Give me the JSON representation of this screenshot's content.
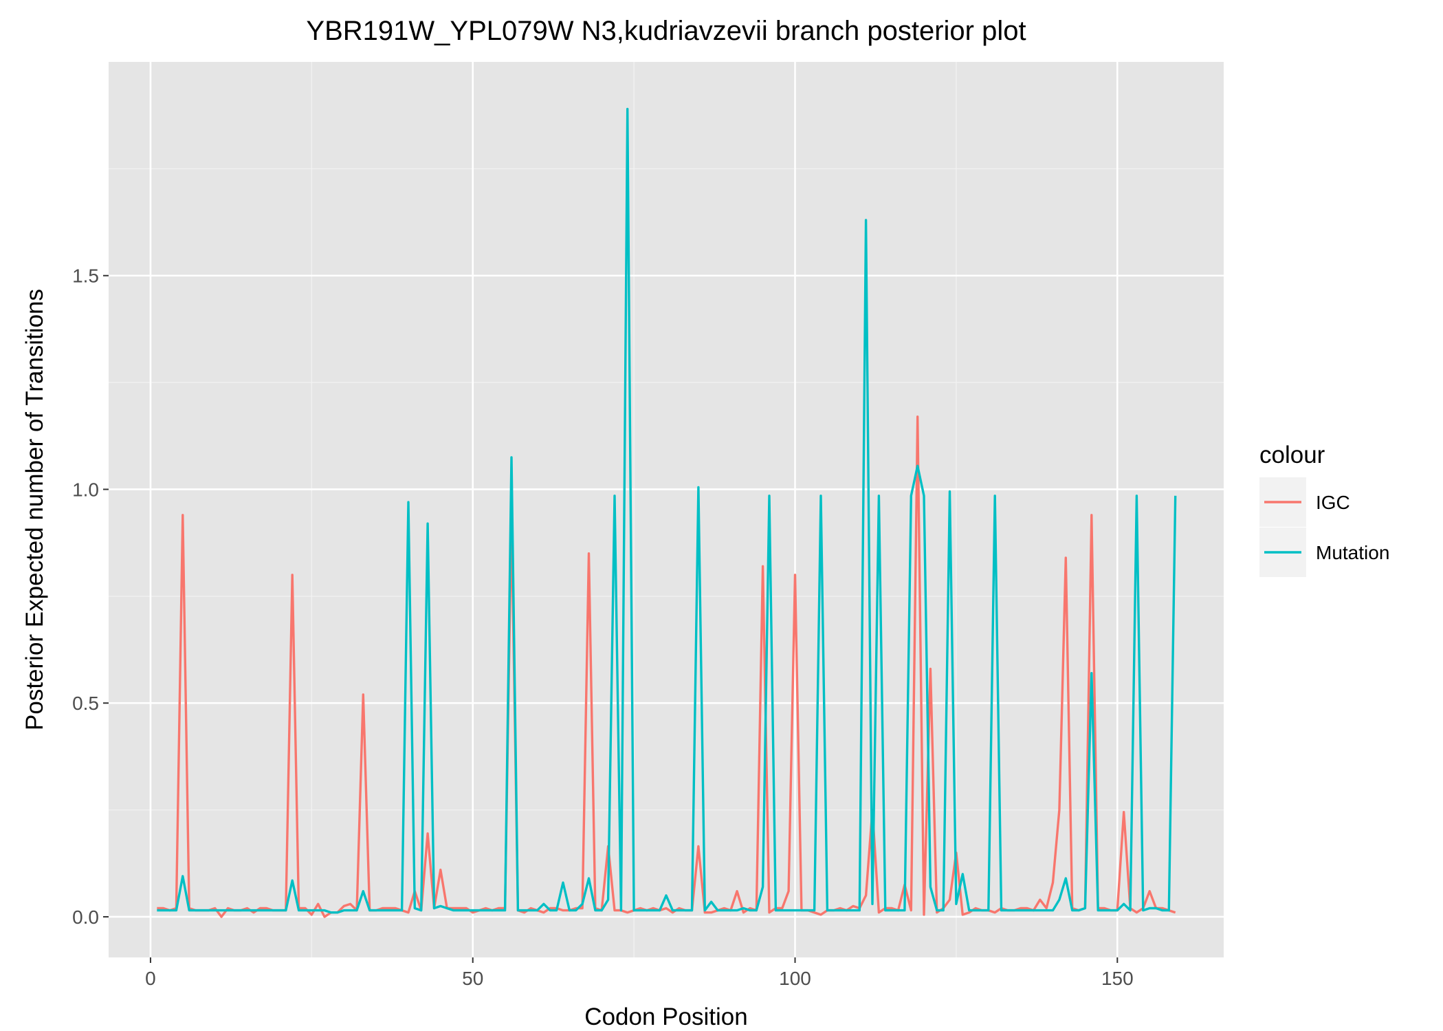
{
  "chart_data": {
    "type": "line",
    "title": "YBR191W_YPL079W N3,kudriavzevii branch posterior plot",
    "xlabel": "Codon Position",
    "ylabel": "Posterior Expected number of Transitions",
    "xlim": [
      -6.5,
      166.5
    ],
    "ylim": [
      -0.095,
      2.0
    ],
    "xticks": [
      0,
      50,
      100,
      150
    ],
    "xtick_labels": [
      "0",
      "50",
      "100",
      "150"
    ],
    "yticks": [
      0.0,
      0.5,
      1.0,
      1.5
    ],
    "ytick_labels": [
      "0.0",
      "0.5",
      "1.0",
      "1.5"
    ],
    "grid": true,
    "legend": {
      "title": "colour",
      "position": "right"
    },
    "series": [
      {
        "name": "IGC",
        "color": "#F8766D",
        "x": [
          1,
          2,
          3,
          4,
          5,
          6,
          7,
          8,
          9,
          10,
          11,
          12,
          13,
          14,
          15,
          16,
          17,
          18,
          19,
          20,
          21,
          22,
          23,
          24,
          25,
          26,
          27,
          28,
          29,
          30,
          31,
          32,
          33,
          34,
          35,
          36,
          37,
          38,
          39,
          40,
          41,
          42,
          43,
          44,
          45,
          46,
          47,
          48,
          49,
          50,
          51,
          52,
          53,
          54,
          55,
          56,
          57,
          58,
          59,
          60,
          61,
          62,
          63,
          64,
          65,
          66,
          67,
          68,
          69,
          70,
          71,
          72,
          73,
          74,
          75,
          76,
          77,
          78,
          79,
          80,
          81,
          82,
          83,
          84,
          85,
          86,
          87,
          88,
          89,
          90,
          91,
          92,
          93,
          94,
          95,
          96,
          97,
          98,
          99,
          100,
          101,
          102,
          103,
          104,
          105,
          106,
          107,
          108,
          109,
          110,
          111,
          112,
          113,
          114,
          115,
          116,
          117,
          118,
          119,
          120,
          121,
          122,
          123,
          124,
          125,
          126,
          127,
          128,
          129,
          130,
          131,
          132,
          133,
          134,
          135,
          136,
          137,
          138,
          139,
          140,
          141,
          142,
          143,
          144,
          145,
          146,
          147,
          148,
          149,
          150,
          151,
          152,
          153,
          154,
          155,
          156,
          157,
          158,
          159
        ],
        "y": [
          0.02,
          0.02,
          0.015,
          0.02,
          0.94,
          0.02,
          0.015,
          0.015,
          0.015,
          0.02,
          0.0,
          0.02,
          0.015,
          0.015,
          0.02,
          0.01,
          0.02,
          0.02,
          0.015,
          0.015,
          0.015,
          0.8,
          0.02,
          0.02,
          0.005,
          0.03,
          0.0,
          0.01,
          0.01,
          0.025,
          0.03,
          0.015,
          0.52,
          0.015,
          0.015,
          0.02,
          0.02,
          0.02,
          0.015,
          0.01,
          0.06,
          0.015,
          0.195,
          0.02,
          0.11,
          0.02,
          0.02,
          0.02,
          0.02,
          0.01,
          0.015,
          0.02,
          0.015,
          0.02,
          0.02,
          0.94,
          0.015,
          0.01,
          0.02,
          0.015,
          0.01,
          0.02,
          0.02,
          0.015,
          0.015,
          0.02,
          0.02,
          0.85,
          0.02,
          0.015,
          0.165,
          0.015,
          0.015,
          0.01,
          0.015,
          0.02,
          0.015,
          0.02,
          0.015,
          0.02,
          0.01,
          0.02,
          0.015,
          0.015,
          0.165,
          0.01,
          0.01,
          0.015,
          0.02,
          0.015,
          0.06,
          0.01,
          0.02,
          0.015,
          0.82,
          0.01,
          0.02,
          0.02,
          0.06,
          0.8,
          0.015,
          0.015,
          0.01,
          0.005,
          0.015,
          0.015,
          0.02,
          0.015,
          0.025,
          0.02,
          0.05,
          0.25,
          0.01,
          0.02,
          0.02,
          0.015,
          0.075,
          0.015,
          1.17,
          0.005,
          0.58,
          0.01,
          0.02,
          0.04,
          0.15,
          0.005,
          0.01,
          0.02,
          0.015,
          0.015,
          0.01,
          0.02,
          0.015,
          0.015,
          0.02,
          0.02,
          0.015,
          0.04,
          0.02,
          0.08,
          0.25,
          0.84,
          0.02,
          0.015,
          0.02,
          0.94,
          0.02,
          0.02,
          0.015,
          0.015,
          0.245,
          0.02,
          0.01,
          0.02,
          0.06,
          0.02,
          0.02,
          0.015,
          0.01
        ]
      },
      {
        "name": "Mutation",
        "color": "#00BFC4",
        "x": [
          1,
          2,
          3,
          4,
          5,
          6,
          7,
          8,
          9,
          10,
          11,
          12,
          13,
          14,
          15,
          16,
          17,
          18,
          19,
          20,
          21,
          22,
          23,
          24,
          25,
          26,
          27,
          28,
          29,
          30,
          31,
          32,
          33,
          34,
          35,
          36,
          37,
          38,
          39,
          40,
          41,
          42,
          43,
          44,
          45,
          46,
          47,
          48,
          49,
          50,
          51,
          52,
          53,
          54,
          55,
          56,
          57,
          58,
          59,
          60,
          61,
          62,
          63,
          64,
          65,
          66,
          67,
          68,
          69,
          70,
          71,
          72,
          73,
          74,
          75,
          76,
          77,
          78,
          79,
          80,
          81,
          82,
          83,
          84,
          85,
          86,
          87,
          88,
          89,
          90,
          91,
          92,
          93,
          94,
          95,
          96,
          97,
          98,
          99,
          100,
          101,
          102,
          103,
          104,
          105,
          106,
          107,
          108,
          109,
          110,
          111,
          112,
          113,
          114,
          115,
          116,
          117,
          118,
          119,
          120,
          121,
          122,
          123,
          124,
          125,
          126,
          127,
          128,
          129,
          130,
          131,
          132,
          133,
          134,
          135,
          136,
          137,
          138,
          139,
          140,
          141,
          142,
          143,
          144,
          145,
          146,
          147,
          148,
          149,
          150,
          151,
          152,
          153,
          154,
          155,
          156,
          157,
          158,
          159
        ],
        "y": [
          0.015,
          0.015,
          0.015,
          0.015,
          0.095,
          0.015,
          0.015,
          0.015,
          0.015,
          0.015,
          0.015,
          0.015,
          0.015,
          0.015,
          0.015,
          0.015,
          0.015,
          0.015,
          0.015,
          0.015,
          0.015,
          0.085,
          0.015,
          0.015,
          0.015,
          0.015,
          0.015,
          0.01,
          0.01,
          0.015,
          0.015,
          0.015,
          0.06,
          0.015,
          0.015,
          0.015,
          0.015,
          0.015,
          0.015,
          0.97,
          0.02,
          0.015,
          0.92,
          0.02,
          0.025,
          0.02,
          0.015,
          0.015,
          0.015,
          0.015,
          0.015,
          0.015,
          0.015,
          0.015,
          0.015,
          1.075,
          0.015,
          0.015,
          0.015,
          0.015,
          0.03,
          0.015,
          0.015,
          0.08,
          0.015,
          0.015,
          0.03,
          0.09,
          0.015,
          0.015,
          0.04,
          0.985,
          0.015,
          1.89,
          0.015,
          0.015,
          0.015,
          0.015,
          0.015,
          0.05,
          0.015,
          0.015,
          0.015,
          0.015,
          1.005,
          0.015,
          0.035,
          0.015,
          0.015,
          0.015,
          0.015,
          0.02,
          0.015,
          0.015,
          0.07,
          0.985,
          0.015,
          0.015,
          0.015,
          0.015,
          0.015,
          0.015,
          0.015,
          0.985,
          0.015,
          0.015,
          0.015,
          0.015,
          0.015,
          0.015,
          1.63,
          0.03,
          0.985,
          0.015,
          0.015,
          0.015,
          0.015,
          0.985,
          1.055,
          0.985,
          0.07,
          0.015,
          0.015,
          0.995,
          0.03,
          0.1,
          0.015,
          0.015,
          0.015,
          0.015,
          0.985,
          0.015,
          0.015,
          0.015,
          0.015,
          0.015,
          0.015,
          0.015,
          0.015,
          0.015,
          0.04,
          0.09,
          0.015,
          0.015,
          0.02,
          0.57,
          0.015,
          0.015,
          0.015,
          0.015,
          0.03,
          0.015,
          0.985,
          0.015,
          0.02,
          0.02,
          0.015,
          0.015,
          0.985
        ]
      }
    ]
  }
}
